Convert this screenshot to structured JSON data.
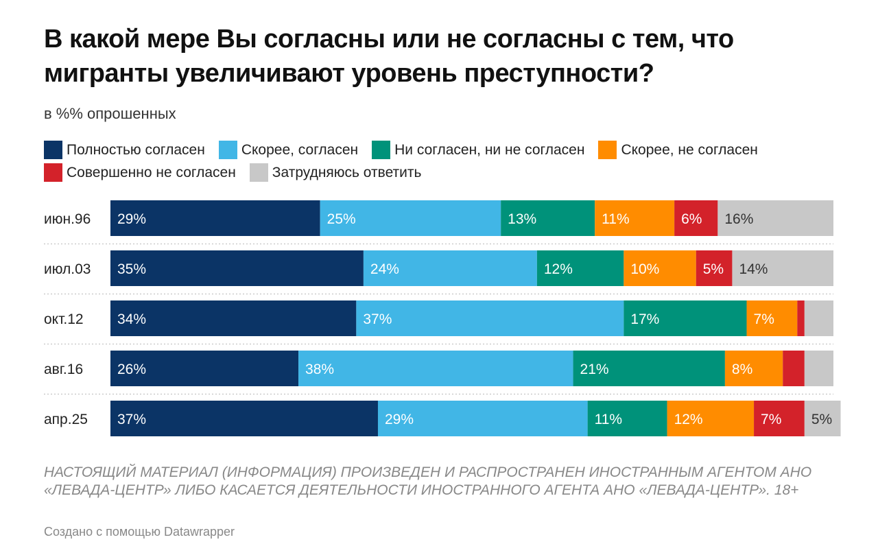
{
  "title": "В какой мере Вы согласны или не согласны с тем, что мигранты увеличивают уровень преступности?",
  "subtitle": "в %% опрошенных",
  "legend": {
    "row1": [
      {
        "label": "Полностью согласен",
        "color": "#0b3466"
      },
      {
        "label": "Скорее, согласен",
        "color": "#41b6e6"
      },
      {
        "label": "Ни согласен, ни не согласен",
        "color": "#00927a"
      },
      {
        "label": "Скорее, не согласен",
        "color": "#ff8c00"
      }
    ],
    "row2": [
      {
        "label": "Совершенно не согласен",
        "color": "#d3222a"
      },
      {
        "label": "Затрудняюсь ответить",
        "color": "#c8c8c8"
      }
    ]
  },
  "chart_data": {
    "type": "bar",
    "orientation": "horizontal",
    "stacked": true,
    "xlim": [
      0,
      100
    ],
    "grid": false,
    "categories": [
      "июн.96",
      "июл.03",
      "окт.12",
      "авг.16",
      "апр.25"
    ],
    "series": [
      {
        "name": "Полностью согласен",
        "color": "#0b3466",
        "label_color": "#ffffff",
        "values": [
          29,
          35,
          34,
          26,
          37
        ],
        "labels": [
          "29%",
          "35%",
          "34%",
          "26%",
          "37%"
        ]
      },
      {
        "name": "Скорее, согласен",
        "color": "#41b6e6",
        "label_color": "#ffffff",
        "values": [
          25,
          24,
          37,
          38,
          29
        ],
        "labels": [
          "25%",
          "24%",
          "37%",
          "38%",
          "29%"
        ]
      },
      {
        "name": "Ни согласен, ни не согласен",
        "color": "#00927a",
        "label_color": "#ffffff",
        "values": [
          13,
          12,
          17,
          21,
          11
        ],
        "labels": [
          "13%",
          "12%",
          "17%",
          "21%",
          "11%"
        ]
      },
      {
        "name": "Скорее, не согласен",
        "color": "#ff8c00",
        "label_color": "#ffffff",
        "values": [
          11,
          10,
          7,
          8,
          12
        ],
        "labels": [
          "11%",
          "10%",
          "7%",
          "8%",
          "12%"
        ]
      },
      {
        "name": "Совершенно не согласен",
        "color": "#d3222a",
        "label_color": "#ffffff",
        "values": [
          6,
          5,
          1,
          3,
          7
        ],
        "labels": [
          "6%",
          "5%",
          "",
          "",
          "7%"
        ]
      },
      {
        "name": "Затрудняюсь ответить",
        "color": "#c8c8c8",
        "label_color": "#333333",
        "values": [
          16,
          14,
          4,
          4,
          5
        ],
        "labels": [
          "16%",
          "14%",
          "",
          "",
          "5%"
        ]
      }
    ]
  },
  "notice": "НАСТОЯЩИЙ МАТЕРИАЛ (ИНФОРМАЦИЯ) ПРОИЗВЕДЕН И РАСПРОСТРАНЕН ИНОСТРАННЫМ АГЕНТОМ АНО «ЛЕВАДА-ЦЕНТР» ЛИБО КАСАЕТСЯ ДЕЯТЕЛЬНОСТИ ИНОСТРАННОГО АГЕНТА АНО «ЛЕВАДА-ЦЕНТР». 18+",
  "credit": "Создано с помощью Datawrapper"
}
